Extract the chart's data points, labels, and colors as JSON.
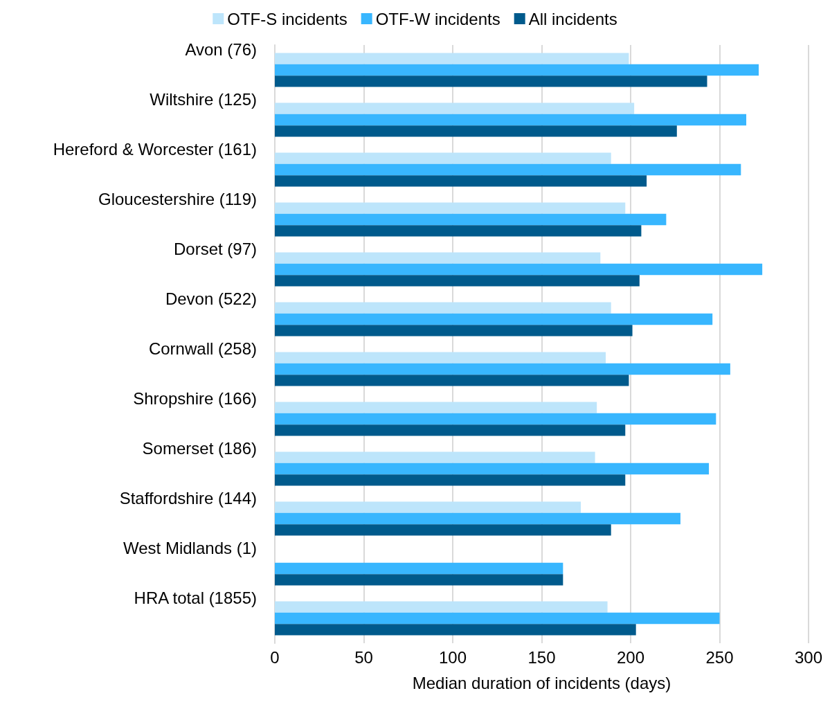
{
  "chart_data": {
    "type": "bar",
    "orientation": "horizontal",
    "xlabel": "Median duration of incidents (days)",
    "categories": [
      "Avon (76)",
      "Wiltshire (125)",
      "Hereford & Worcester (161)",
      "Gloucestershire (119)",
      "Dorset (97)",
      "Devon (522)",
      "Cornwall (258)",
      "Shropshire (166)",
      "Somerset (186)",
      "Staffordshire (144)",
      "West Midlands (1)",
      "HRA total (1855)"
    ],
    "series": [
      {
        "name": "OTF-S incidents",
        "color": "#bde5fb",
        "values": [
          199,
          202,
          189,
          197,
          183,
          189,
          186,
          181,
          180,
          172,
          null,
          187
        ]
      },
      {
        "name": "OTF-W incidents",
        "color": "#38b6fe",
        "values": [
          272,
          265,
          262,
          220,
          274,
          246,
          256,
          248,
          244,
          228,
          162,
          250
        ]
      },
      {
        "name": "All incidents",
        "color": "#005a8c",
        "values": [
          243,
          226,
          209,
          206,
          205,
          201,
          199,
          197,
          197,
          189,
          162,
          203
        ]
      }
    ],
    "xlim": [
      0,
      300
    ],
    "xticks": [
      0,
      50,
      100,
      150,
      200,
      250,
      300
    ],
    "grid": "x",
    "legend": "top"
  }
}
